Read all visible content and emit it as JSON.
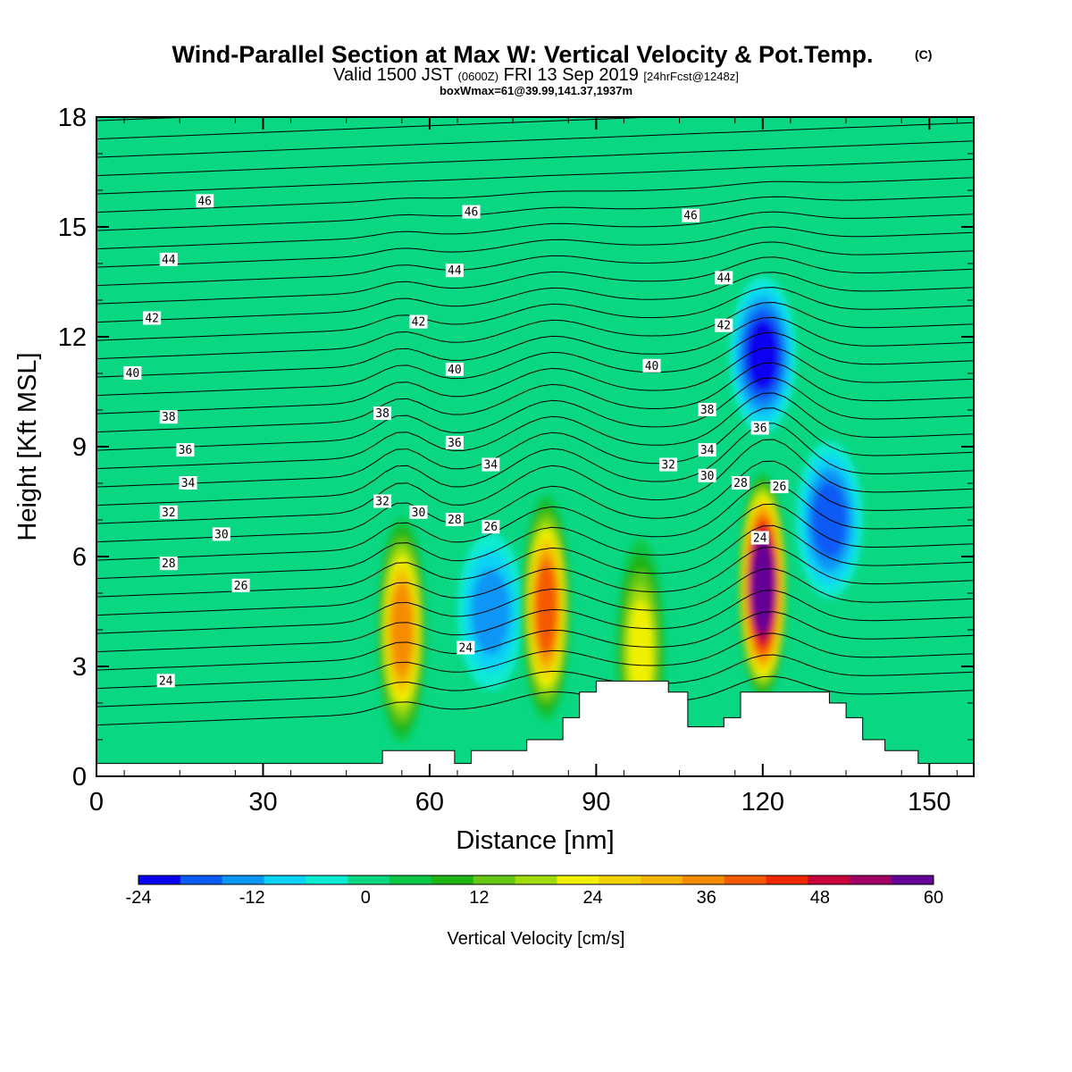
{
  "chart_data": {
    "type": "heatmap",
    "title": "Wind-Parallel Section at Max W: Vertical Velocity & Pot.Temp.",
    "title_mark": "(C)",
    "subtitle_main": "Valid 1500 JST",
    "subtitle_z": "(0600Z)",
    "subtitle_date": "FRI 13 Sep 2019",
    "subtitle_fcst": "[24hrFcst@1248z]",
    "subtitle2": "boxWmax=61@39.99,141.37,1937m",
    "xlabel": "Distance [nm]",
    "ylabel": "Height [Kft MSL]",
    "xlim": [
      0,
      158
    ],
    "ylim": [
      0,
      18
    ],
    "xticks": [
      0,
      30,
      60,
      90,
      120,
      150
    ],
    "yticks": [
      0,
      3,
      6,
      9,
      12,
      15,
      18
    ],
    "colorbar": {
      "label": "Vertical Velocity [cm/s]",
      "min": -24,
      "max": 60,
      "ticks": [
        -24,
        -12,
        0,
        12,
        24,
        36,
        48,
        60
      ],
      "colors": [
        "#0a00f0",
        "#0a5af5",
        "#0a96f5",
        "#0ad2f5",
        "#0aebd2",
        "#0ad782",
        "#0ac846",
        "#1eb414",
        "#64c814",
        "#a0dc0a",
        "#f0f000",
        "#f0d200",
        "#f5b400",
        "#f58c00",
        "#f55a00",
        "#f02800",
        "#c8003c",
        "#a00064",
        "#640096"
      ]
    },
    "wmax_cells": [
      {
        "x": 55,
        "z": 4.0,
        "w": 36
      },
      {
        "x": 71,
        "z": 4.5,
        "w": -12
      },
      {
        "x": 81,
        "z": 4.6,
        "w": 40
      },
      {
        "x": 98,
        "z": 3.4,
        "w": 22
      },
      {
        "x": 120,
        "z": 5.2,
        "w": 60
      },
      {
        "x": 132,
        "z": 7.0,
        "w": -16
      },
      {
        "x": 120,
        "z": 11.5,
        "w": -20
      }
    ],
    "theta_levels": [
      24,
      26,
      28,
      30,
      32,
      34,
      36,
      38,
      40,
      42,
      44,
      46
    ],
    "contour_labels": [
      {
        "text": "46",
        "x": 19.5,
        "z": 15.7
      },
      {
        "text": "46",
        "x": 67.5,
        "z": 15.4
      },
      {
        "text": "46",
        "x": 107,
        "z": 15.3
      },
      {
        "text": "44",
        "x": 13,
        "z": 14.1
      },
      {
        "text": "44",
        "x": 64.5,
        "z": 13.8
      },
      {
        "text": "44",
        "x": 113,
        "z": 13.6
      },
      {
        "text": "42",
        "x": 10,
        "z": 12.5
      },
      {
        "text": "42",
        "x": 58,
        "z": 12.4
      },
      {
        "text": "42",
        "x": 113,
        "z": 12.3
      },
      {
        "text": "40",
        "x": 6.5,
        "z": 11.0
      },
      {
        "text": "40",
        "x": 64.5,
        "z": 11.1
      },
      {
        "text": "40",
        "x": 100,
        "z": 11.2
      },
      {
        "text": "38",
        "x": 13,
        "z": 9.8
      },
      {
        "text": "38",
        "x": 51.5,
        "z": 9.9
      },
      {
        "text": "38",
        "x": 110,
        "z": 10.0
      },
      {
        "text": "36",
        "x": 16,
        "z": 8.9
      },
      {
        "text": "36",
        "x": 64.5,
        "z": 9.1
      },
      {
        "text": "36",
        "x": 119.5,
        "z": 9.5
      },
      {
        "text": "34",
        "x": 16.5,
        "z": 8.0
      },
      {
        "text": "34",
        "x": 71,
        "z": 8.5
      },
      {
        "text": "34",
        "x": 110,
        "z": 8.9
      },
      {
        "text": "32",
        "x": 13,
        "z": 7.2
      },
      {
        "text": "32",
        "x": 51.5,
        "z": 7.5
      },
      {
        "text": "32",
        "x": 103,
        "z": 8.5
      },
      {
        "text": "30",
        "x": 22.5,
        "z": 6.6
      },
      {
        "text": "30",
        "x": 58,
        "z": 7.2
      },
      {
        "text": "30",
        "x": 110,
        "z": 8.2
      },
      {
        "text": "28",
        "x": 13,
        "z": 5.8
      },
      {
        "text": "28",
        "x": 64.5,
        "z": 7.0
      },
      {
        "text": "28",
        "x": 116,
        "z": 8.0
      },
      {
        "text": "26",
        "x": 26,
        "z": 5.2
      },
      {
        "text": "26",
        "x": 71,
        "z": 6.8
      },
      {
        "text": "26",
        "x": 123,
        "z": 7.9
      },
      {
        "text": "24",
        "x": 12.5,
        "z": 2.6
      },
      {
        "text": "24",
        "x": 66.5,
        "z": 3.5
      },
      {
        "text": "24",
        "x": 119.5,
        "z": 6.5
      }
    ],
    "terrain": [
      [
        0,
        0.35
      ],
      [
        51.5,
        0.35
      ],
      [
        51.5,
        0.7
      ],
      [
        64.5,
        0.7
      ],
      [
        64.5,
        0.35
      ],
      [
        67.5,
        0.35
      ],
      [
        67.5,
        0.7
      ],
      [
        77.5,
        0.7
      ],
      [
        77.5,
        1.0
      ],
      [
        84,
        1.0
      ],
      [
        84,
        1.6
      ],
      [
        87,
        1.6
      ],
      [
        87,
        2.3
      ],
      [
        90,
        2.3
      ],
      [
        90,
        2.6
      ],
      [
        103,
        2.6
      ],
      [
        103,
        2.3
      ],
      [
        106.5,
        2.3
      ],
      [
        106.5,
        1.35
      ],
      [
        113,
        1.35
      ],
      [
        113,
        1.6
      ],
      [
        116,
        1.6
      ],
      [
        116,
        2.3
      ],
      [
        132,
        2.3
      ],
      [
        132,
        2.0
      ],
      [
        135,
        2.0
      ],
      [
        135,
        1.6
      ],
      [
        138,
        1.6
      ],
      [
        138,
        1.0
      ],
      [
        142,
        1.0
      ],
      [
        142,
        0.7
      ],
      [
        148,
        0.7
      ],
      [
        148,
        0.35
      ],
      [
        158,
        0.35
      ]
    ]
  }
}
